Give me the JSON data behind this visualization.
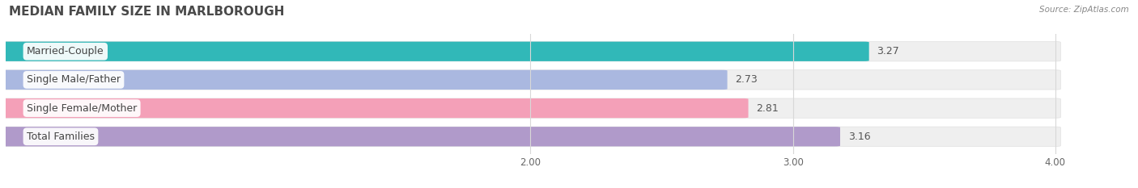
{
  "title": "MEDIAN FAMILY SIZE IN MARLBOROUGH",
  "source": "Source: ZipAtlas.com",
  "categories": [
    "Married-Couple",
    "Single Male/Father",
    "Single Female/Mother",
    "Total Families"
  ],
  "values": [
    3.27,
    2.73,
    2.81,
    3.16
  ],
  "bar_colors": [
    "#31b8b8",
    "#aab8e0",
    "#f4a0b8",
    "#b09aca"
  ],
  "bar_bg_color": "#efefef",
  "xmin": 0.0,
  "xmax": 4.0,
  "xlim_left": 0.0,
  "xlim_right": 4.25,
  "xticks": [
    2.0,
    3.0,
    4.0
  ],
  "xtick_labels": [
    "2.00",
    "3.00",
    "4.00"
  ],
  "title_fontsize": 11,
  "label_fontsize": 9,
  "value_fontsize": 9,
  "bar_height": 0.65,
  "background_color": "#ffffff",
  "grid_color": "#d8d8d8",
  "title_color": "#4a4a4a",
  "source_color": "#888888",
  "label_text_color": "#444444",
  "value_text_color": "#555555"
}
